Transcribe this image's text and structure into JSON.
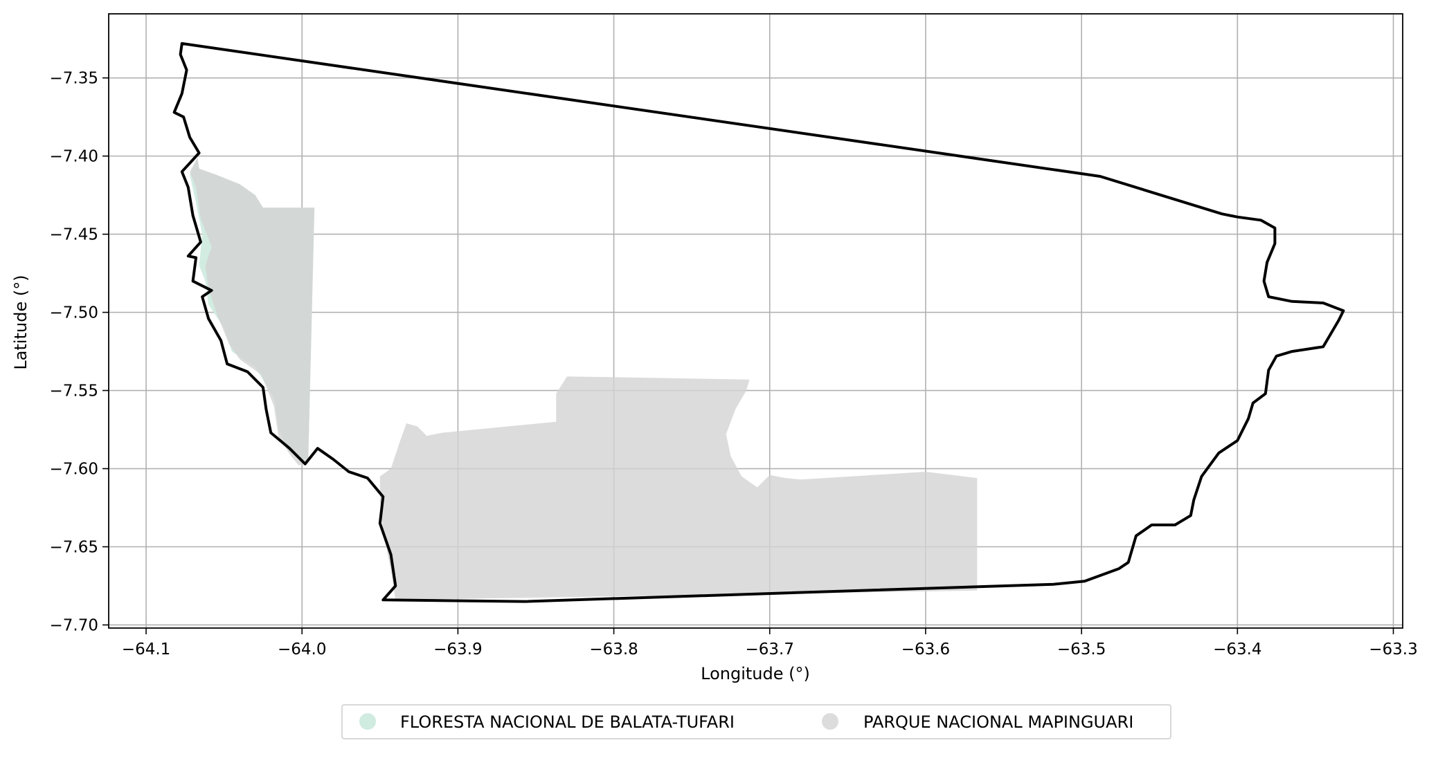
{
  "chart_data": {
    "type": "map",
    "xlabel": "Longitude (°)",
    "ylabel": "Latitude (°)",
    "xlim": [
      -64.124,
      -63.294
    ],
    "ylim": [
      -7.702,
      -7.309
    ],
    "grid": true,
    "legend_placement": "bottom-center",
    "x_ticks": [
      {
        "value": -64.1,
        "label": "−64.1"
      },
      {
        "value": -64.0,
        "label": "−64.0"
      },
      {
        "value": -63.9,
        "label": "−63.9"
      },
      {
        "value": -63.8,
        "label": "−63.8"
      },
      {
        "value": -63.7,
        "label": "−63.7"
      },
      {
        "value": -63.6,
        "label": "−63.6"
      },
      {
        "value": -63.5,
        "label": "−63.5"
      },
      {
        "value": -63.4,
        "label": "−63.4"
      },
      {
        "value": -63.3,
        "label": "−63.3"
      }
    ],
    "y_ticks": [
      {
        "value": -7.35,
        "label": "−7.35"
      },
      {
        "value": -7.4,
        "label": "−7.40"
      },
      {
        "value": -7.45,
        "label": "−7.45"
      },
      {
        "value": -7.5,
        "label": "−7.50"
      },
      {
        "value": -7.55,
        "label": "−7.55"
      },
      {
        "value": -7.6,
        "label": "−7.60"
      },
      {
        "value": -7.65,
        "label": "−7.65"
      },
      {
        "value": -7.7,
        "label": "−7.70"
      }
    ],
    "series": [
      {
        "name": "FLORESTA NACIONAL DE BALATA-TUFARI",
        "kind": "polygon",
        "color": "#d0ebe0",
        "opacity": 0.95,
        "coords": [
          [
            -64.067,
            -7.401
          ],
          [
            -64.066,
            -7.408
          ],
          [
            -64.055,
            -7.412
          ],
          [
            -64.04,
            -7.418
          ],
          [
            -64.03,
            -7.425
          ],
          [
            -64.025,
            -7.433
          ],
          [
            -63.992,
            -7.433
          ],
          [
            -63.996,
            -7.595
          ],
          [
            -64.008,
            -7.59
          ],
          [
            -64.015,
            -7.575
          ],
          [
            -64.018,
            -7.555
          ],
          [
            -64.03,
            -7.535
          ],
          [
            -64.045,
            -7.525
          ],
          [
            -64.05,
            -7.51
          ],
          [
            -64.06,
            -7.495
          ],
          [
            -64.062,
            -7.48
          ],
          [
            -64.066,
            -7.47
          ],
          [
            -64.064,
            -7.45
          ],
          [
            -64.068,
            -7.43
          ],
          [
            -64.072,
            -7.412
          ]
        ]
      },
      {
        "name": "PARQUE NACIONAL MAPINGUARI",
        "kind": "polygon",
        "color": "#d3d3d3",
        "opacity": 0.8,
        "coords": [
          [
            -64.067,
            -7.401
          ],
          [
            -64.066,
            -7.408
          ],
          [
            -64.055,
            -7.412
          ],
          [
            -64.04,
            -7.418
          ],
          [
            -64.03,
            -7.425
          ],
          [
            -64.025,
            -7.433
          ],
          [
            -63.992,
            -7.433
          ],
          [
            -63.996,
            -7.595
          ],
          [
            -64.002,
            -7.598
          ],
          [
            -64.007,
            -7.592
          ],
          [
            -64.015,
            -7.58
          ],
          [
            -64.018,
            -7.56
          ],
          [
            -64.026,
            -7.54
          ],
          [
            -64.04,
            -7.53
          ],
          [
            -64.047,
            -7.52
          ],
          [
            -64.055,
            -7.5
          ],
          [
            -64.06,
            -7.485
          ],
          [
            -64.062,
            -7.47
          ],
          [
            -64.058,
            -7.458
          ],
          [
            -64.065,
            -7.44
          ],
          [
            -64.068,
            -7.42
          ],
          [
            -64.072,
            -7.41
          ]
        ]
      },
      {
        "name": "PARQUE NACIONAL MAPINGUARI",
        "kind": "polygon",
        "color": "#d3d3d3",
        "opacity": 0.8,
        "coords": [
          [
            -63.95,
            -7.605
          ],
          [
            -63.943,
            -7.6
          ],
          [
            -63.937,
            -7.582
          ],
          [
            -63.933,
            -7.571
          ],
          [
            -63.926,
            -7.573
          ],
          [
            -63.92,
            -7.579
          ],
          [
            -63.91,
            -7.577
          ],
          [
            -63.837,
            -7.57
          ],
          [
            -63.837,
            -7.552
          ],
          [
            -63.83,
            -7.541
          ],
          [
            -63.713,
            -7.543
          ],
          [
            -63.715,
            -7.55
          ],
          [
            -63.722,
            -7.562
          ],
          [
            -63.728,
            -7.578
          ],
          [
            -63.725,
            -7.592
          ],
          [
            -63.718,
            -7.605
          ],
          [
            -63.708,
            -7.612
          ],
          [
            -63.7,
            -7.604
          ],
          [
            -63.69,
            -7.606
          ],
          [
            -63.68,
            -7.607
          ],
          [
            -63.6,
            -7.602
          ],
          [
            -63.567,
            -7.606
          ],
          [
            -63.567,
            -7.678
          ],
          [
            -63.94,
            -7.684
          ],
          [
            -63.943,
            -7.665
          ],
          [
            -63.948,
            -7.64
          ],
          [
            -63.95,
            -7.62
          ]
        ]
      },
      {
        "name": "boundary",
        "kind": "outline",
        "color": "#000000",
        "coords": [
          [
            -64.077,
            -7.328
          ],
          [
            -63.488,
            -7.413
          ],
          [
            -63.41,
            -7.437
          ],
          [
            -63.4,
            -7.439
          ],
          [
            -63.385,
            -7.441
          ],
          [
            -63.376,
            -7.446
          ],
          [
            -63.376,
            -7.456
          ],
          [
            -63.381,
            -7.468
          ],
          [
            -63.383,
            -7.48
          ],
          [
            -63.38,
            -7.49
          ],
          [
            -63.365,
            -7.493
          ],
          [
            -63.345,
            -7.494
          ],
          [
            -63.332,
            -7.499
          ],
          [
            -63.335,
            -7.505
          ],
          [
            -63.345,
            -7.522
          ],
          [
            -63.365,
            -7.525
          ],
          [
            -63.375,
            -7.528
          ],
          [
            -63.38,
            -7.537
          ],
          [
            -63.382,
            -7.552
          ],
          [
            -63.39,
            -7.558
          ],
          [
            -63.393,
            -7.568
          ],
          [
            -63.4,
            -7.582
          ],
          [
            -63.412,
            -7.59
          ],
          [
            -63.423,
            -7.605
          ],
          [
            -63.428,
            -7.62
          ],
          [
            -63.43,
            -7.63
          ],
          [
            -63.44,
            -7.636
          ],
          [
            -63.455,
            -7.636
          ],
          [
            -63.465,
            -7.643
          ],
          [
            -63.47,
            -7.66
          ],
          [
            -63.476,
            -7.664
          ],
          [
            -63.498,
            -7.672
          ],
          [
            -63.518,
            -7.674
          ],
          [
            -63.857,
            -7.685
          ],
          [
            -63.948,
            -7.684
          ],
          [
            -63.94,
            -7.675
          ],
          [
            -63.943,
            -7.655
          ],
          [
            -63.95,
            -7.635
          ],
          [
            -63.948,
            -7.618
          ],
          [
            -63.958,
            -7.606
          ],
          [
            -63.97,
            -7.602
          ],
          [
            -63.98,
            -7.594
          ],
          [
            -63.99,
            -7.587
          ],
          [
            -63.998,
            -7.597
          ],
          [
            -64.008,
            -7.587
          ],
          [
            -64.02,
            -7.577
          ],
          [
            -64.023,
            -7.562
          ],
          [
            -64.025,
            -7.548
          ],
          [
            -64.035,
            -7.538
          ],
          [
            -64.048,
            -7.533
          ],
          [
            -64.052,
            -7.518
          ],
          [
            -64.06,
            -7.504
          ],
          [
            -64.064,
            -7.49
          ],
          [
            -64.058,
            -7.486
          ],
          [
            -64.07,
            -7.48
          ],
          [
            -64.068,
            -7.465
          ],
          [
            -64.073,
            -7.464
          ],
          [
            -64.065,
            -7.455
          ],
          [
            -64.07,
            -7.438
          ],
          [
            -64.073,
            -7.42
          ],
          [
            -64.077,
            -7.41
          ],
          [
            -64.066,
            -7.398
          ],
          [
            -64.072,
            -7.388
          ],
          [
            -64.076,
            -7.375
          ],
          [
            -64.082,
            -7.372
          ],
          [
            -64.077,
            -7.36
          ],
          [
            -64.074,
            -7.345
          ],
          [
            -64.078,
            -7.335
          ],
          [
            -64.077,
            -7.328
          ]
        ]
      }
    ],
    "legend": [
      {
        "label": "FLORESTA NACIONAL DE BALATA-TUFARI",
        "color": "#d0ebe0"
      },
      {
        "label": "PARQUE NACIONAL MAPINGUARI",
        "color": "#dcdcdc"
      }
    ]
  }
}
